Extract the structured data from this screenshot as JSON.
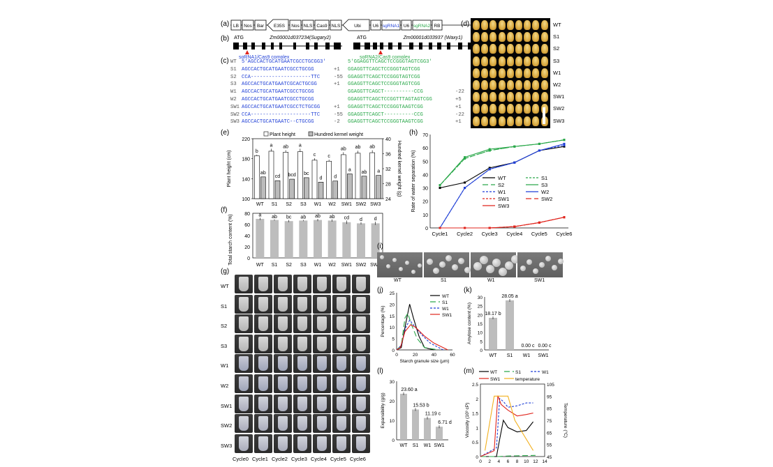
{
  "panel_labels": {
    "a": "(a)",
    "b": "(b)",
    "c": "(c)",
    "d": "(d)",
    "e": "(e)",
    "f": "(f)",
    "g": "(g)",
    "h": "(h)",
    "i": "(i)",
    "j": "(j)",
    "k": "(k)",
    "l": "(l)",
    "m": "(m)"
  },
  "construct": {
    "parts": [
      "LB",
      "Nos",
      "Bar",
      "E35S",
      "Nos",
      "NLS",
      "Cas9",
      "NLS",
      "Ubi",
      "U6",
      "sgRNA1",
      "U6",
      "sgRNA2",
      "RB"
    ]
  },
  "genes": {
    "atg": "ATG",
    "gene1": "Zm00001d037234(Sugary2)",
    "gene2": "Zm00001d033937 (Waxy1)",
    "sg1": "sgRNA1/Cas9 complex",
    "sg2": "sgRNA2/Cas9 complex"
  },
  "sequences": {
    "rows": [
      {
        "name": "WT",
        "s1": "5'AGCCACTGCATGAATCGCCTGCGG3'",
        "n1": "",
        "s2": "5'GGAGGTTCAGCTCCGGGTAGTCGG3'",
        "n2": ""
      },
      {
        "name": "S1",
        "s1": "AGCCACTGCATGAATCGCCTGCGG",
        "n1": "+1",
        "s2": "GGAGGTTCAGCTCCGGGTAGTCGG",
        "n2": ""
      },
      {
        "name": "S2",
        "s1": "CCA--------------------TTC",
        "n1": "-55",
        "s2": "GGAGGTTCAGCTCCGGGTAGTCGG",
        "n2": ""
      },
      {
        "name": "S3",
        "s1": "AGCCACTGCATGAATCGCACTGCGG",
        "n1": "+1",
        "s2": "GGAGGTTCAGCTCCGGGTAGTCGG",
        "n2": ""
      },
      {
        "name": "W1",
        "s1": "AGCCACTGCATGAATCGCCTGCGG",
        "n1": "",
        "s2": "GGAGGTTCAGCT----------CCG",
        "n2": "-22"
      },
      {
        "name": "W2",
        "s1": "AGCCACTGCATGAATCGCCTGCGG",
        "n1": "",
        "s2": "GGAGGTTCAGCTCCGGTTTAGTAGTCGG",
        "n2": "+5"
      },
      {
        "name": "SW1",
        "s1": "AGCCACTGCATGAATCGCCTCTGCGG",
        "n1": "+1",
        "s2": "GGAGGTTCAGCTCCGGGTAAGTCGG",
        "n2": "+1"
      },
      {
        "name": "SW2",
        "s1": "CCA--------------------TTC",
        "n1": "-55",
        "s2": "GGAGGTTCAGCT----------CCG",
        "n2": "-22"
      },
      {
        "name": "SW3",
        "s1": "AGCCACTGCATGAATC--CTGCGG",
        "n1": "-2",
        "s2": "GGAGGTTCAGCTCCGGGTAAGTCGG",
        "n2": "+1"
      }
    ]
  },
  "kernel_rows": [
    "WT",
    "S1",
    "S2",
    "S3",
    "W1",
    "W2",
    "SW1",
    "SW2",
    "SW3"
  ],
  "chart_e": {
    "type": "bar",
    "categories": [
      "WT",
      "S1",
      "S2",
      "S3",
      "W1",
      "W2",
      "SW1",
      "SW2",
      "SW3"
    ],
    "series": [
      {
        "name": "Plant height",
        "values": [
          186,
          195,
          193,
          194,
          177,
          175,
          188,
          191,
          192
        ],
        "err": [
          2,
          5,
          4,
          6,
          4,
          3,
          5,
          5,
          5
        ],
        "letters": [
          "b",
          "a",
          "ab",
          "a",
          "c",
          "c",
          "ab",
          "ab",
          "ab"
        ]
      },
      {
        "name": "Hundred kernel weight",
        "values": [
          29.8,
          28.8,
          29.2,
          29.6,
          28.4,
          28.7,
          30.6,
          30.0,
          30.2
        ],
        "err": [
          0.3,
          0.3,
          0.3,
          0.3,
          0.3,
          0.3,
          0.4,
          0.3,
          0.4
        ],
        "letters": [
          "ab",
          "cd",
          "bcd",
          "bc",
          "d",
          "d",
          "a",
          "ab",
          "a"
        ]
      }
    ],
    "ylabel": "Plant height (cm)",
    "y2label": "Hundred kernel weight (g)",
    "yticks": [
      "100",
      "140",
      "180",
      "220"
    ],
    "y2ticks": [
      "24",
      "28",
      "32",
      "36",
      "40"
    ]
  },
  "chart_f": {
    "type": "bar",
    "categories": [
      "WT",
      "S1",
      "S2",
      "S3",
      "W1",
      "W2",
      "SW1",
      "SW2",
      "SW3"
    ],
    "values": [
      70,
      68,
      66,
      67,
      68,
      67,
      64,
      62,
      62
    ],
    "err": [
      2,
      1,
      2,
      1,
      2,
      2,
      3,
      2,
      3
    ],
    "letters": [
      "a",
      "ab",
      "bc",
      "ab",
      "ab",
      "ab",
      "cd",
      "d",
      "d"
    ],
    "ylabel": "Total starch content (%)",
    "yticks": [
      "0",
      "20",
      "40",
      "60",
      "80"
    ]
  },
  "cycles": [
    "Cycle0",
    "Cycle1",
    "Cycle2",
    "Cycle3",
    "Cycle4",
    "Cycle5",
    "Cycle6"
  ],
  "chart_h": {
    "type": "line",
    "x": [
      "Cycle1",
      "Cycle2",
      "Cycle3",
      "Cycle4",
      "Cycle5",
      "Cycle6"
    ],
    "ylabel": "Rate of water separation (%)",
    "yticks": [
      "0",
      "10",
      "20",
      "30",
      "40",
      "50",
      "60",
      "70"
    ],
    "series": [
      {
        "name": "WT",
        "color": "#000000",
        "dash": "",
        "values": [
          30,
          34,
          45,
          49,
          58,
          61
        ]
      },
      {
        "name": "S1",
        "color": "#2aa84a",
        "dash": "3,2",
        "values": [
          32,
          52,
          58,
          61,
          63,
          66
        ]
      },
      {
        "name": "S2",
        "color": "#2aa84a",
        "dash": "8,4",
        "values": [
          32,
          52,
          58,
          61,
          63,
          66
        ]
      },
      {
        "name": "S3",
        "color": "#2aa84a",
        "dash": "",
        "values": [
          32,
          53,
          59,
          61,
          63,
          66
        ]
      },
      {
        "name": "W1",
        "color": "#1f3fd6",
        "dash": "3,2",
        "values": [
          0,
          30,
          44,
          49,
          58,
          62
        ]
      },
      {
        "name": "W2",
        "color": "#1f3fd6",
        "dash": "",
        "values": [
          0,
          30,
          44,
          49,
          58,
          63
        ]
      },
      {
        "name": "SW1",
        "color": "#e0241c",
        "dash": "3,2",
        "values": [
          0,
          0,
          0,
          1,
          4,
          8
        ]
      },
      {
        "name": "SW2",
        "color": "#e0241c",
        "dash": "8,4",
        "values": [
          0,
          0,
          0,
          1,
          4,
          8
        ]
      },
      {
        "name": "SW3",
        "color": "#e0241c",
        "dash": "",
        "values": [
          0,
          0,
          0,
          1,
          4,
          8
        ]
      }
    ]
  },
  "sem_labels": [
    "WT",
    "S1",
    "W1",
    "SW1"
  ],
  "chart_j": {
    "type": "line",
    "xlabel": "Starch granule size (μm)",
    "ylabel": "Percentage (%)",
    "xticks": [
      "0",
      "20",
      "40",
      "60"
    ],
    "yticks": [
      "0",
      "5",
      "10",
      "15",
      "20",
      "25"
    ],
    "series": [
      {
        "name": "WT",
        "color": "#000000",
        "dash": ""
      },
      {
        "name": "S1",
        "color": "#2aa84a",
        "dash": "8,4"
      },
      {
        "name": "W1",
        "color": "#1f3fd6",
        "dash": "3,2"
      },
      {
        "name": "SW1",
        "color": "#e0241c",
        "dash": ""
      }
    ]
  },
  "chart_k": {
    "type": "bar",
    "categories": [
      "WT",
      "S1",
      "W1",
      "SW1"
    ],
    "values": [
      18.17,
      28.05,
      0,
      0
    ],
    "labels": [
      "18.17 b",
      "28.05 a",
      "0.00 c",
      "0.00 c"
    ],
    "ylabel": "Amylose content (%)",
    "yticks": [
      "0",
      "5",
      "10",
      "15",
      "20",
      "25",
      "30"
    ]
  },
  "chart_l": {
    "type": "bar",
    "categories": [
      "WT",
      "S1",
      "W1",
      "SW1"
    ],
    "values": [
      23.6,
      15.53,
      11.19,
      6.71
    ],
    "labels": [
      "23.60 a",
      "15.53 b",
      "11.19 c",
      "6.71 d"
    ],
    "ylabel": "Expansibility (g/g)",
    "yticks": [
      "0",
      "10",
      "20",
      "30"
    ]
  },
  "chart_m": {
    "type": "line",
    "xlabel": "Time (min)",
    "ylabel": "Viscosity (10³ cP)",
    "y2label": "Temperature (°C)",
    "xticks": [
      "0",
      "2",
      "4",
      "6",
      "8",
      "10",
      "12",
      "14"
    ],
    "yticks": [
      "0",
      "0.5",
      "1",
      "1.5",
      "2",
      "2.5"
    ],
    "y2ticks": [
      "45",
      "55",
      "65",
      "75",
      "85",
      "95",
      "105"
    ],
    "series": [
      {
        "name": "WT",
        "color": "#000000",
        "dash": ""
      },
      {
        "name": "S1",
        "color": "#2aa84a",
        "dash": "8,4"
      },
      {
        "name": "W1",
        "color": "#1f3fd6",
        "dash": "3,2"
      },
      {
        "name": "SW1",
        "color": "#e0241c",
        "dash": ""
      },
      {
        "name": "temperature",
        "color": "#f2b01e",
        "dash": ""
      }
    ]
  }
}
